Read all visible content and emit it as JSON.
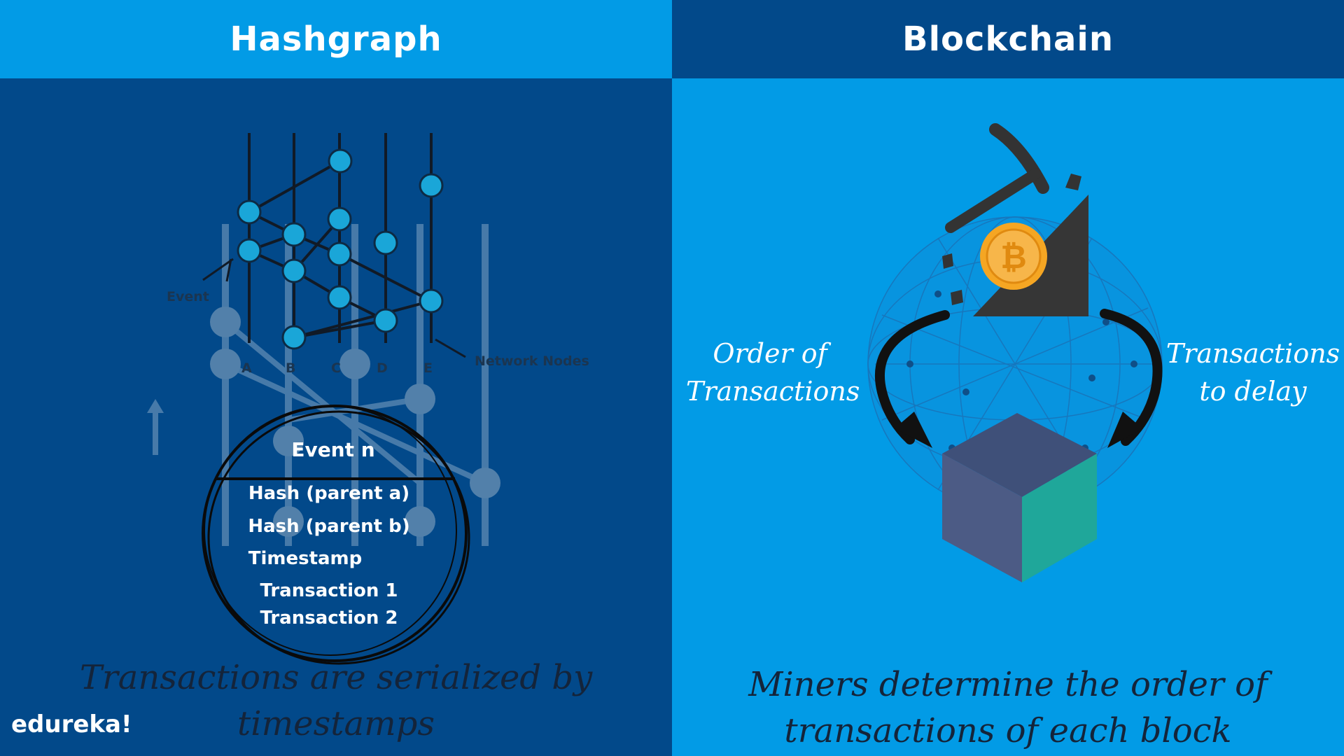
{
  "left": {
    "header": "Hashgraph",
    "diagram": {
      "event_label": "Event",
      "network_nodes_label": "Network Nodes",
      "node_letters": [
        "A",
        "B",
        "C",
        "D",
        "E"
      ]
    },
    "event_box": {
      "title": "Event n",
      "rows": [
        "Hash (parent a)",
        "Hash (parent b)",
        "Timestamp",
        "Transaction 1",
        "Transaction 2"
      ]
    },
    "caption": "Transactions are serialized by timestamps"
  },
  "right": {
    "header": "Blockchain",
    "order_label": [
      "Order of",
      "Transactions"
    ],
    "delay_label": [
      "Transactions",
      "to delay"
    ],
    "caption": "Miners determine the order of transactions of each block"
  },
  "logo": "edureka!",
  "colors": {
    "dark_blue": "#02498a",
    "light_blue": "#029be6",
    "node_cyan": "#1aa6d8",
    "cube_top": "#3f5079",
    "cube_left": "#4c5b85",
    "cube_right": "#1fa79a",
    "coin": "#f5a623"
  }
}
